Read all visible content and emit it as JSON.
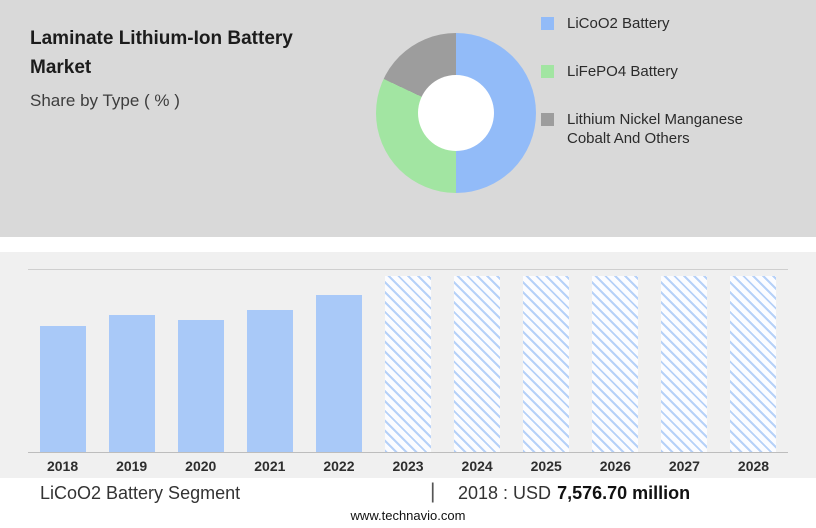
{
  "header": {
    "title": "Laminate Lithium-Ion Battery Market",
    "subtitle": "Share by Type ( % )"
  },
  "colors": {
    "top_background": "#d9d9d9",
    "chart_background": "#f0f0f0",
    "donut_blue": "#92bbf8",
    "donut_green": "#a2e5a2",
    "donut_gray": "#9d9d9d",
    "bar_blue": "#a9c9f8"
  },
  "chart_data": [
    {
      "type": "pie",
      "subtype": "donut",
      "title": "Share by Type ( % )",
      "labels": [
        "LiCoO2 Battery",
        "LiFePO4 Battery",
        "Lithium Nickel Manganese Cobalt And Others"
      ],
      "values": [
        50,
        32,
        18
      ],
      "colors": [
        "#92bbf8",
        "#a2e5a2",
        "#9d9d9d"
      ],
      "legend_position": "right",
      "hole": true
    },
    {
      "type": "bar",
      "title": "",
      "xlabel": "",
      "ylabel": "",
      "categories": [
        "2018",
        "2019",
        "2020",
        "2021",
        "2022",
        "2023",
        "2024",
        "2025",
        "2026",
        "2027",
        "2028"
      ],
      "values": [
        7576.7,
        8180,
        7880,
        8480,
        9380,
        null,
        null,
        null,
        null,
        null,
        null
      ],
      "forecast_years": [
        "2023",
        "2024",
        "2025",
        "2026",
        "2027",
        "2028"
      ],
      "forecast_display_value": 10520,
      "forecast_style": "diagonal-hatch",
      "ylim": [
        0,
        10900
      ],
      "grid": false,
      "bar_color": "#a9c9f8",
      "known_value_note": "2018 : USD 7,576.70 million"
    }
  ],
  "footer": {
    "segment_label": "LiCoO2 Battery Segment",
    "separator": "|",
    "value_prefix": "2018 : USD",
    "value_bold": "7,576.70 million",
    "website": "www.technavio.com"
  }
}
